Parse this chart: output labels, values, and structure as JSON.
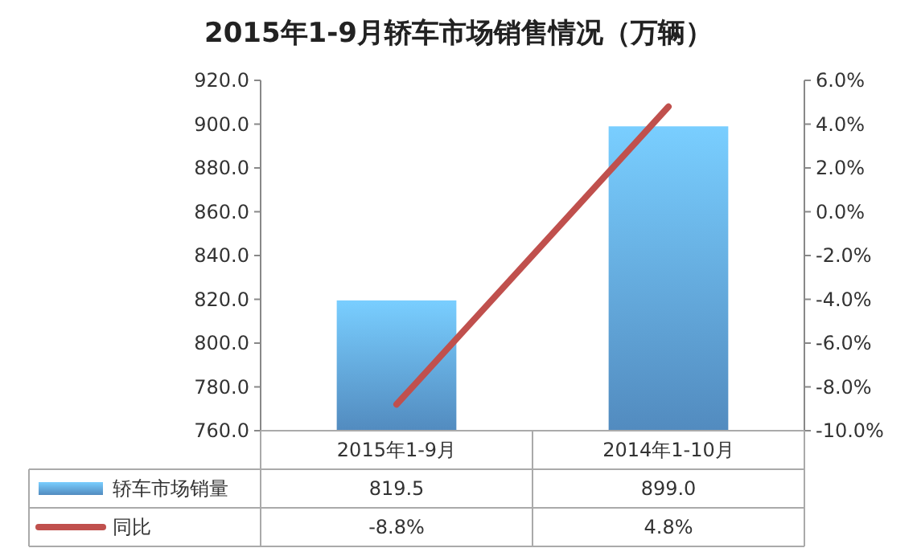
{
  "chart_data": {
    "type": "bar",
    "title": "2015年1-9月轿车市场销售情况（万辆）",
    "categories": [
      "2015年1-9月",
      "2014年1-10月"
    ],
    "series": [
      {
        "name": "轿车市场销量",
        "color": "#5b9bd5",
        "values": [
          819.5,
          899.0
        ],
        "value_labels": [
          "819.5",
          "899.0"
        ]
      },
      {
        "name": "同比",
        "type": "line",
        "axis": "y2",
        "color": "#c0504d",
        "values": [
          -8.8,
          4.8
        ],
        "value_labels": [
          "-8.8%",
          "4.8%"
        ]
      }
    ],
    "ylim": [
      760,
      920
    ],
    "yticks": [
      {
        "value": 760,
        "label": "760.0"
      },
      {
        "value": 780,
        "label": "780.0"
      },
      {
        "value": 800,
        "label": "800.0"
      },
      {
        "value": 820,
        "label": "820.0"
      },
      {
        "value": 840,
        "label": "840.0"
      },
      {
        "value": 860,
        "label": "860.0"
      },
      {
        "value": 880,
        "label": "880.0"
      },
      {
        "value": 900,
        "label": "900.0"
      },
      {
        "value": 920,
        "label": "920.0"
      }
    ],
    "y2lim": [
      -10,
      6
    ],
    "y2ticks": [
      {
        "value": -10,
        "label": "-10.0%"
      },
      {
        "value": -8,
        "label": "-8.0%"
      },
      {
        "value": -6,
        "label": "-6.0%"
      },
      {
        "value": -4,
        "label": "-4.0%"
      },
      {
        "value": -2,
        "label": "-2.0%"
      },
      {
        "value": 0,
        "label": "0.0%"
      },
      {
        "value": 2,
        "label": "2.0%"
      },
      {
        "value": 4,
        "label": "4.0%"
      },
      {
        "value": 6,
        "label": "6.0%"
      }
    ],
    "grid": false,
    "legend": "bottom left"
  }
}
